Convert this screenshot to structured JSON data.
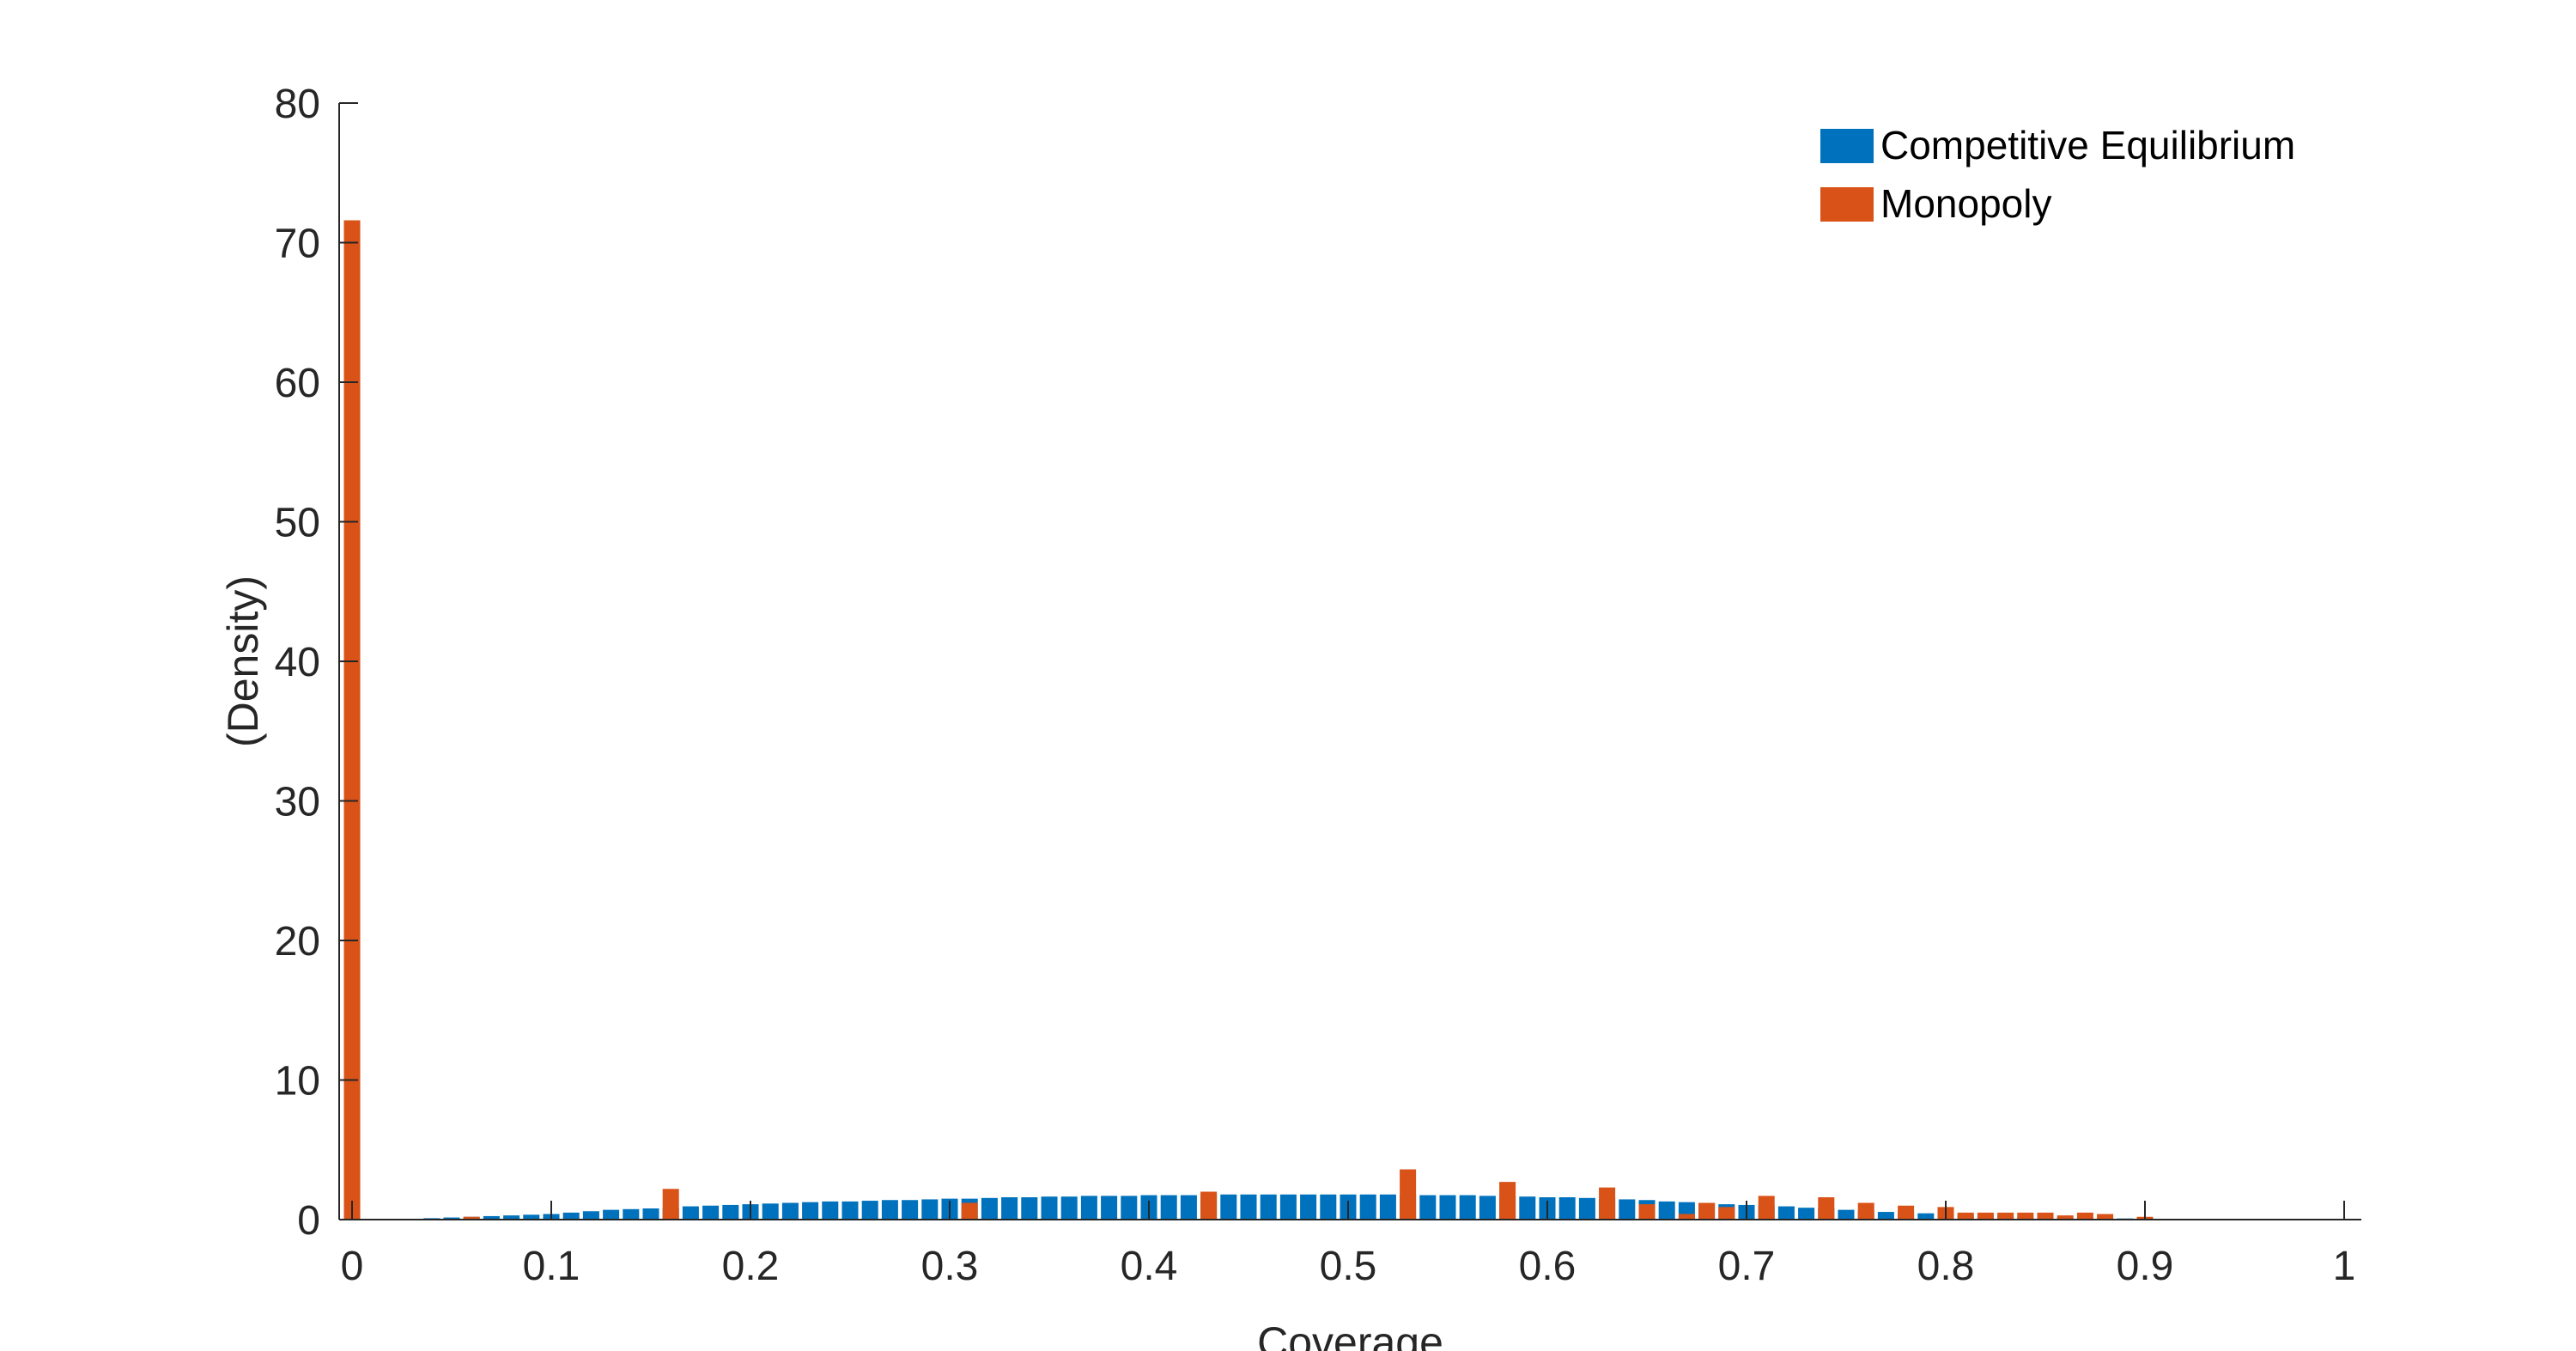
{
  "chart_data": {
    "type": "bar",
    "title": "",
    "xlabel": "Coverage",
    "ylabel": "(Density)",
    "xlim": [
      0,
      1
    ],
    "ylim": [
      0,
      80
    ],
    "x_ticks": [
      "0",
      "0.1",
      "0.2",
      "0.3",
      "0.4",
      "0.5",
      "0.6",
      "0.7",
      "0.8",
      "0.9",
      "1"
    ],
    "y_ticks": [
      "0",
      "10",
      "20",
      "30",
      "40",
      "50",
      "60",
      "70",
      "80"
    ],
    "grid": false,
    "legend_position": "top-right",
    "bin_width": 0.01,
    "series": [
      {
        "name": "Competitive Equilibrium",
        "color": "#0072BD",
        "x": [
          0.04,
          0.05,
          0.06,
          0.07,
          0.08,
          0.09,
          0.1,
          0.11,
          0.12,
          0.13,
          0.14,
          0.15,
          0.16,
          0.17,
          0.18,
          0.19,
          0.2,
          0.21,
          0.22,
          0.23,
          0.24,
          0.25,
          0.26,
          0.27,
          0.28,
          0.29,
          0.3,
          0.31,
          0.32,
          0.33,
          0.34,
          0.35,
          0.36,
          0.37,
          0.38,
          0.39,
          0.4,
          0.41,
          0.42,
          0.43,
          0.44,
          0.45,
          0.46,
          0.47,
          0.48,
          0.49,
          0.5,
          0.51,
          0.52,
          0.53,
          0.54,
          0.55,
          0.56,
          0.57,
          0.58,
          0.59,
          0.6,
          0.61,
          0.62,
          0.63,
          0.64,
          0.65,
          0.66,
          0.67,
          0.68,
          0.69,
          0.7,
          0.71,
          0.72,
          0.73,
          0.74,
          0.75,
          0.76,
          0.77,
          0.78,
          0.79,
          0.8,
          0.81,
          0.82,
          0.83,
          0.84,
          0.85,
          0.86,
          0.87,
          0.88,
          0.89,
          0.9,
          0.91,
          0.92,
          0.93
        ],
        "values": [
          0.1,
          0.15,
          0.2,
          0.25,
          0.3,
          0.35,
          0.4,
          0.5,
          0.6,
          0.7,
          0.75,
          0.8,
          0.85,
          0.95,
          1.0,
          1.05,
          1.1,
          1.15,
          1.2,
          1.25,
          1.3,
          1.3,
          1.35,
          1.4,
          1.4,
          1.45,
          1.5,
          1.5,
          1.55,
          1.6,
          1.6,
          1.65,
          1.65,
          1.7,
          1.7,
          1.7,
          1.75,
          1.75,
          1.75,
          1.8,
          1.8,
          1.8,
          1.8,
          1.8,
          1.8,
          1.8,
          1.8,
          1.8,
          1.8,
          1.8,
          1.75,
          1.75,
          1.75,
          1.7,
          1.7,
          1.65,
          1.6,
          1.6,
          1.55,
          1.5,
          1.45,
          1.4,
          1.3,
          1.25,
          1.2,
          1.1,
          1.05,
          1.0,
          0.95,
          0.85,
          0.8,
          0.7,
          0.65,
          0.55,
          0.5,
          0.45,
          0.4,
          0.35,
          0.3,
          0.25,
          0.2,
          0.2,
          0.15,
          0.12,
          0.1,
          0.08,
          0.06,
          0.05,
          0.04,
          0.03
        ]
      },
      {
        "name": "Monopoly",
        "color": "#D95319",
        "x": [
          0.0,
          0.06,
          0.16,
          0.31,
          0.43,
          0.53,
          0.58,
          0.63,
          0.65,
          0.67,
          0.68,
          0.69,
          0.71,
          0.74,
          0.76,
          0.78,
          0.8,
          0.81,
          0.82,
          0.83,
          0.84,
          0.85,
          0.86,
          0.87,
          0.88,
          0.9
        ],
        "values": [
          71.6,
          0.2,
          2.2,
          1.2,
          2.0,
          3.6,
          2.7,
          2.3,
          1.1,
          0.4,
          1.2,
          0.9,
          1.7,
          1.6,
          1.2,
          1.0,
          0.9,
          0.5,
          0.5,
          0.5,
          0.5,
          0.5,
          0.3,
          0.5,
          0.4,
          0.2
        ]
      }
    ]
  }
}
